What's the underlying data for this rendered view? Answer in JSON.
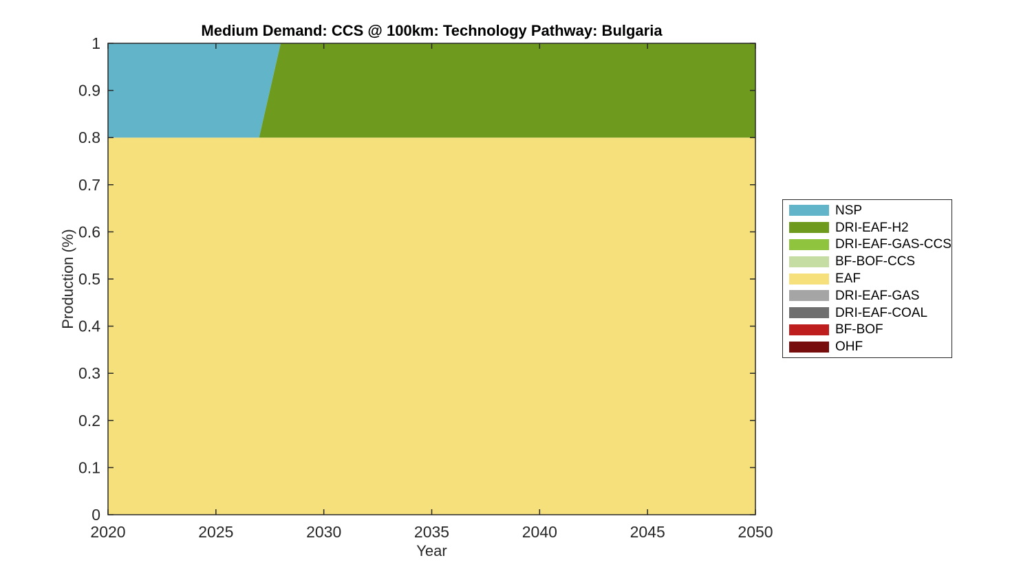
{
  "title": "Medium Demand: CCS @ 100km: Technology Pathway: Bulgaria",
  "axes": {
    "xlabel": "Year",
    "ylabel": "Production (%)",
    "xtick_labels": [
      "2020",
      "2025",
      "2030",
      "2035",
      "2040",
      "2045",
      "2050"
    ],
    "xticks": [
      2020,
      2025,
      2030,
      2035,
      2040,
      2045,
      2050
    ],
    "ytick_labels": [
      "0",
      "0.1",
      "0.2",
      "0.3",
      "0.4",
      "0.5",
      "0.6",
      "0.7",
      "0.8",
      "0.9",
      "1"
    ],
    "yticks": [
      0,
      0.1,
      0.2,
      0.3,
      0.4,
      0.5,
      0.6,
      0.7,
      0.8,
      0.9,
      1
    ]
  },
  "chart_data": {
    "type": "area",
    "stacked": true,
    "title": "Medium Demand: CCS @ 100km: Technology Pathway: Bulgaria",
    "xlabel": "Year",
    "ylabel": "Production (%)",
    "xlim": [
      2020,
      2050
    ],
    "ylim": [
      0,
      1
    ],
    "grid": false,
    "legend_position": "right-outside",
    "background": "#ffffff",
    "axis_color": "#262626",
    "x": [
      2020,
      2027,
      2028,
      2050
    ],
    "series": [
      {
        "name": "NSP",
        "color": "#62B4C8",
        "values": [
          0.2,
          0.2,
          0.0,
          0.0
        ]
      },
      {
        "name": "DRI-EAF-H2",
        "color": "#6E9B1E",
        "values": [
          0.0,
          0.0,
          0.2,
          0.2
        ]
      },
      {
        "name": "DRI-EAF-GAS-CCS",
        "color": "#8FC43F",
        "values": [
          0.0,
          0.0,
          0.0,
          0.0
        ]
      },
      {
        "name": "BF-BOF-CCS",
        "color": "#C5DCA3",
        "values": [
          0.0,
          0.0,
          0.0,
          0.0
        ]
      },
      {
        "name": "EAF",
        "color": "#F6E07C",
        "values": [
          0.8,
          0.8,
          0.8,
          0.8
        ]
      },
      {
        "name": "DRI-EAF-GAS",
        "color": "#A5A5A5",
        "values": [
          0.0,
          0.0,
          0.0,
          0.0
        ]
      },
      {
        "name": "DRI-EAF-COAL",
        "color": "#6F6F6F",
        "values": [
          0.0,
          0.0,
          0.0,
          0.0
        ]
      },
      {
        "name": "BF-BOF",
        "color": "#BF1E1E",
        "values": [
          0.0,
          0.0,
          0.0,
          0.0
        ]
      },
      {
        "name": "OHF",
        "color": "#780D0D",
        "values": [
          0.0,
          0.0,
          0.0,
          0.0
        ]
      }
    ],
    "stack_order": "reverse-of-legend (OHF bottom, NSP top)"
  }
}
